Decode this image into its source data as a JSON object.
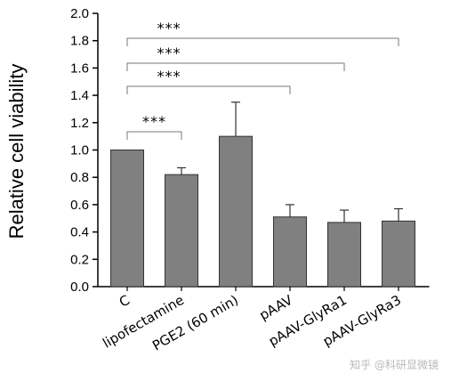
{
  "chart_data": {
    "type": "bar",
    "ylabel": "Relative cell viability",
    "ylim": [
      0,
      2.0
    ],
    "yticks": [
      "0.0",
      "0.2",
      "0.4",
      "0.6",
      "0.8",
      "1.0",
      "1.2",
      "1.4",
      "1.6",
      "1.8",
      "2.0"
    ],
    "categories": [
      "C",
      "lipofectamine",
      "PGE2 (60 min)",
      "pAAV",
      "pAAV-GlyRa1",
      "pAAV-GlyRa3"
    ],
    "values": [
      1.0,
      0.82,
      1.1,
      0.51,
      0.47,
      0.48
    ],
    "errors": [
      0.0,
      0.05,
      0.25,
      0.09,
      0.09,
      0.09
    ],
    "bar_color": "#808080",
    "significance": [
      {
        "from": "C",
        "to": "lipofectamine",
        "label": "***"
      },
      {
        "from": "C",
        "to": "pAAV",
        "label": "***"
      },
      {
        "from": "C",
        "to": "pAAV-GlyRa1",
        "label": "***"
      },
      {
        "from": "C",
        "to": "pAAV-GlyRa3",
        "label": "***"
      }
    ]
  },
  "watermark": "知乎 @科研显微镜"
}
